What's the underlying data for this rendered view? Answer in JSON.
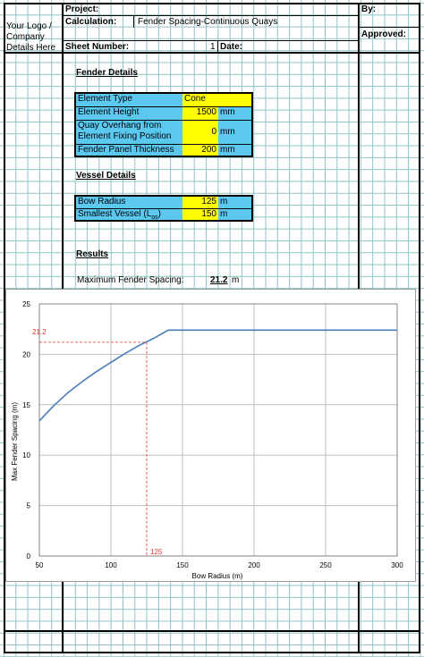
{
  "header": {
    "logo_line1": "Your Logo /",
    "logo_line2": "Company",
    "logo_line3": "Details Here",
    "project_label": "Project:",
    "calculation_label": "Calculation:",
    "calculation_value": "Fender Spacing-Continuous Quays",
    "sheet_number_label": "Sheet Number:",
    "sheet_number_value": "1",
    "date_label": "Date:",
    "by_label": "By:",
    "approved_label": "Approved:"
  },
  "fender_details": {
    "heading": "Fender Details",
    "rows": [
      {
        "label": "Element Type",
        "value": "Cone",
        "unit": ""
      },
      {
        "label": "Element Height",
        "value": "1500",
        "unit": "mm"
      },
      {
        "label_line1": "Quay Overhang from",
        "label_line2": "Element Fixing Position",
        "value": "0",
        "unit": "mm"
      },
      {
        "label": "Fender Panel Thickness",
        "value": "200",
        "unit": "mm"
      }
    ]
  },
  "vessel_details": {
    "heading": "Vessel Details",
    "rows": [
      {
        "label": "Bow Radius",
        "value": "125",
        "unit": "m"
      },
      {
        "label": "Smallest Vessel (L",
        "sub": "os",
        "label_end": ")",
        "value": "150",
        "unit": "m"
      }
    ]
  },
  "results": {
    "heading": "Results",
    "label": "Maximum Fender Spacing:",
    "value": "21.2",
    "unit": "m"
  },
  "chart_data": {
    "type": "line",
    "xlabel": "Bow Radius (m)",
    "ylabel": "Max Fender Spacing (m)",
    "xlim": [
      50,
      300
    ],
    "ylim": [
      0,
      25
    ],
    "xticks": [
      "50",
      "100",
      "150",
      "200",
      "250",
      "300"
    ],
    "yticks": [
      "0",
      "5",
      "10",
      "15",
      "20",
      "25"
    ],
    "grid": true,
    "line_color": "#4a7ebb",
    "marker_color": "#e03030",
    "series": [
      {
        "x": [
          50,
          60,
          70,
          80,
          90,
          100,
          110,
          120,
          130,
          140,
          150,
          200,
          250,
          300
        ],
        "y": [
          13.4,
          14.9,
          16.2,
          17.3,
          18.3,
          19.2,
          20.1,
          20.9,
          21.6,
          22.4,
          22.4,
          22.4,
          22.4,
          22.4
        ]
      }
    ],
    "marker": {
      "x": 125,
      "y": 21.2,
      "x_label": "125",
      "y_label": "21.2"
    }
  }
}
